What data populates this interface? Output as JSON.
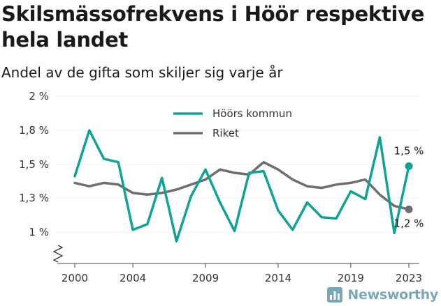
{
  "title": "Skilsmässofrekvens i Höör respektive hela landet",
  "subtitle": "Andel av de gifta som skiljer sig varje år",
  "brand": "Newsworthy",
  "chart_data": {
    "type": "line",
    "x": [
      2000,
      2001,
      2002,
      2003,
      2004,
      2005,
      2006,
      2007,
      2008,
      2009,
      2010,
      2011,
      2012,
      2013,
      2014,
      2015,
      2016,
      2017,
      2018,
      2019,
      2020,
      2021,
      2022,
      2023
    ],
    "series": [
      {
        "name": "Höörs kommun",
        "color": "#10a394",
        "values": [
          1.43,
          1.8,
          1.55,
          1.52,
          1.02,
          1.07,
          1.42,
          0.91,
          1.31,
          1.47,
          1.26,
          1.01,
          1.45,
          1.46,
          1.19,
          1.02,
          1.26,
          1.13,
          1.12,
          1.34,
          1.29,
          1.74,
          0.99,
          1.49
        ],
        "end_label": "1,5 %"
      },
      {
        "name": "Riket",
        "color": "#6d6d72",
        "values": [
          1.39,
          1.37,
          1.39,
          1.38,
          1.33,
          1.32,
          1.33,
          1.35,
          1.38,
          1.41,
          1.47,
          1.45,
          1.44,
          1.52,
          1.47,
          1.41,
          1.37,
          1.36,
          1.38,
          1.39,
          1.41,
          1.32,
          1.23,
          1.2
        ],
        "end_label": "1,2 %"
      }
    ],
    "ylim": [
      0.8,
      2.0
    ],
    "yticks": [
      {
        "value": 2.0,
        "label": "2 %"
      },
      {
        "value": 1.8,
        "label": "1,8 %"
      },
      {
        "value": 1.5,
        "label": "1,5 %"
      },
      {
        "value": 1.3,
        "label": "1,3 %"
      },
      {
        "value": 1.0,
        "label": "1 %"
      }
    ],
    "xticks": [
      2000,
      2004,
      2009,
      2014,
      2019,
      2023
    ],
    "xlim": [
      1999,
      2024
    ],
    "grid": "horizontal dotted",
    "legend_position": "top",
    "y_axis_break": true
  }
}
